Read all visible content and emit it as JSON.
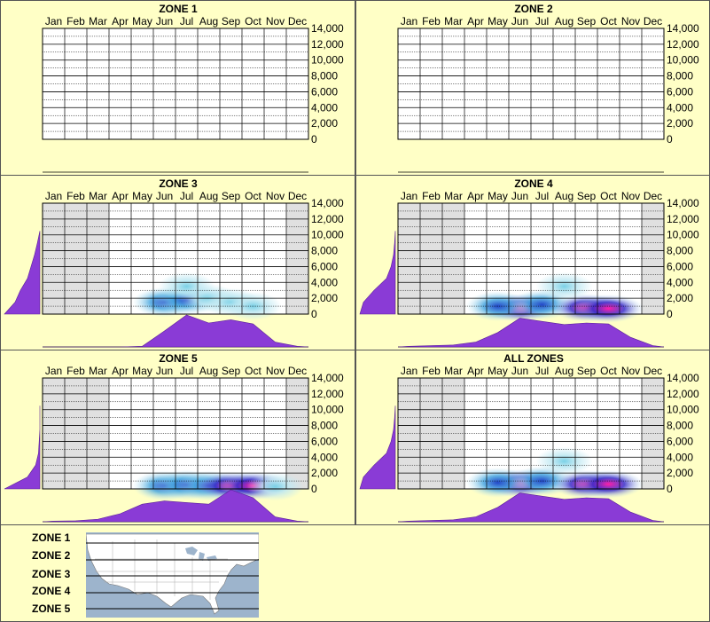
{
  "months": [
    "Jan",
    "Feb",
    "Mar",
    "Apr",
    "May",
    "Jun",
    "Jul",
    "Aug",
    "Sep",
    "Oct",
    "Nov",
    "Dec"
  ],
  "y_ticks": [
    "14,000",
    "12,000",
    "10,000",
    "8,000",
    "6,000",
    "4,000",
    "2,000",
    "0"
  ],
  "colors": {
    "bg": "#ffffc6",
    "profile": "#8a3bd6",
    "grid": "#000000"
  },
  "chart_data": [
    {
      "type": "heatmap",
      "title": "ZONE 1",
      "ylim": [
        0,
        14000
      ],
      "month_profile": [],
      "elev_profile": [],
      "hot_spots": [],
      "shaded_months": []
    },
    {
      "type": "heatmap",
      "title": "ZONE 2",
      "ylim": [
        0,
        14000
      ],
      "month_profile": [],
      "elev_profile": [],
      "hot_spots": [],
      "shaded_months": []
    },
    {
      "type": "heatmap",
      "title": "ZONE 3",
      "ylim": [
        0,
        14000
      ],
      "shaded_months": [
        "Jan",
        "Feb",
        "Mar",
        "Dec"
      ],
      "month_profile": [
        0,
        0,
        0,
        0,
        0.02,
        0.5,
        1.0,
        0.75,
        0.85,
        0.72,
        0.15,
        0.02
      ],
      "elev_profile": [
        1.0,
        0.7,
        0.55,
        0.35,
        0.25,
        0.15,
        0.07,
        0
      ],
      "hot_spots": [
        {
          "month": "Jun",
          "elev": 1500,
          "level": 2
        },
        {
          "month": "Jul",
          "elev": 1800,
          "level": 2
        },
        {
          "month": "Jul",
          "elev": 3500,
          "level": 1
        },
        {
          "month": "Aug",
          "elev": 2000,
          "level": 1
        },
        {
          "month": "Sep",
          "elev": 1500,
          "level": 1
        },
        {
          "month": "Oct",
          "elev": 1000,
          "level": 1
        }
      ]
    },
    {
      "type": "heatmap",
      "title": "ZONE 4",
      "ylim": [
        0,
        14000
      ],
      "shaded_months": [
        "Jan",
        "Feb",
        "Mar",
        "Dec"
      ],
      "month_profile": [
        0.02,
        0.04,
        0.06,
        0.15,
        0.45,
        0.9,
        0.8,
        0.7,
        0.75,
        0.72,
        0.3,
        0.04
      ],
      "elev_profile": [
        1.0,
        0.9,
        0.6,
        0.25,
        0.12,
        0.05,
        0.02,
        0
      ],
      "hot_spots": [
        {
          "month": "Jun",
          "elev": 800,
          "level": 4
        },
        {
          "month": "Jul",
          "elev": 1200,
          "level": 2
        },
        {
          "month": "Sep",
          "elev": 800,
          "level": 4
        },
        {
          "month": "Oct",
          "elev": 700,
          "level": 4
        },
        {
          "month": "Aug",
          "elev": 3500,
          "level": 1
        },
        {
          "month": "May",
          "elev": 1000,
          "level": 2
        }
      ]
    },
    {
      "type": "heatmap",
      "title": "ZONE 5",
      "ylim": [
        0,
        14000
      ],
      "shaded_months": [
        "Jan",
        "Feb",
        "Mar",
        "Dec"
      ],
      "month_profile": [
        0.02,
        0.03,
        0.08,
        0.25,
        0.55,
        0.65,
        0.6,
        0.55,
        1.0,
        0.75,
        0.15,
        0.02
      ],
      "elev_profile": [
        1.0,
        0.35,
        0.12,
        0.04,
        0.02,
        0,
        0,
        0
      ],
      "hot_spots": [
        {
          "month": "Jun",
          "elev": 400,
          "level": 2
        },
        {
          "month": "Jul",
          "elev": 500,
          "level": 2
        },
        {
          "month": "Aug",
          "elev": 400,
          "level": 2
        },
        {
          "month": "Sep",
          "elev": 400,
          "level": 4
        },
        {
          "month": "Oct",
          "elev": 400,
          "level": 4
        },
        {
          "month": "Nov",
          "elev": 300,
          "level": 1
        }
      ]
    },
    {
      "type": "heatmap",
      "title": "ALL ZONES",
      "ylim": [
        0,
        14000
      ],
      "shaded_months": [
        "Jan",
        "Feb",
        "Mar",
        "Dec"
      ],
      "month_profile": [
        0.02,
        0.04,
        0.06,
        0.15,
        0.45,
        0.9,
        0.8,
        0.7,
        0.75,
        0.72,
        0.3,
        0.04
      ],
      "elev_profile": [
        1.0,
        0.9,
        0.6,
        0.25,
        0.12,
        0.05,
        0.02,
        0
      ],
      "hot_spots": [
        {
          "month": "Jun",
          "elev": 700,
          "level": 4
        },
        {
          "month": "Jul",
          "elev": 1000,
          "level": 2
        },
        {
          "month": "Sep",
          "elev": 600,
          "level": 4
        },
        {
          "month": "Oct",
          "elev": 600,
          "level": 4
        },
        {
          "month": "Aug",
          "elev": 3500,
          "level": 1
        },
        {
          "month": "May",
          "elev": 800,
          "level": 2
        }
      ]
    }
  ],
  "map_legend": [
    "ZONE 1",
    "ZONE 2",
    "ZONE 3",
    "ZONE 4",
    "ZONE 5"
  ]
}
